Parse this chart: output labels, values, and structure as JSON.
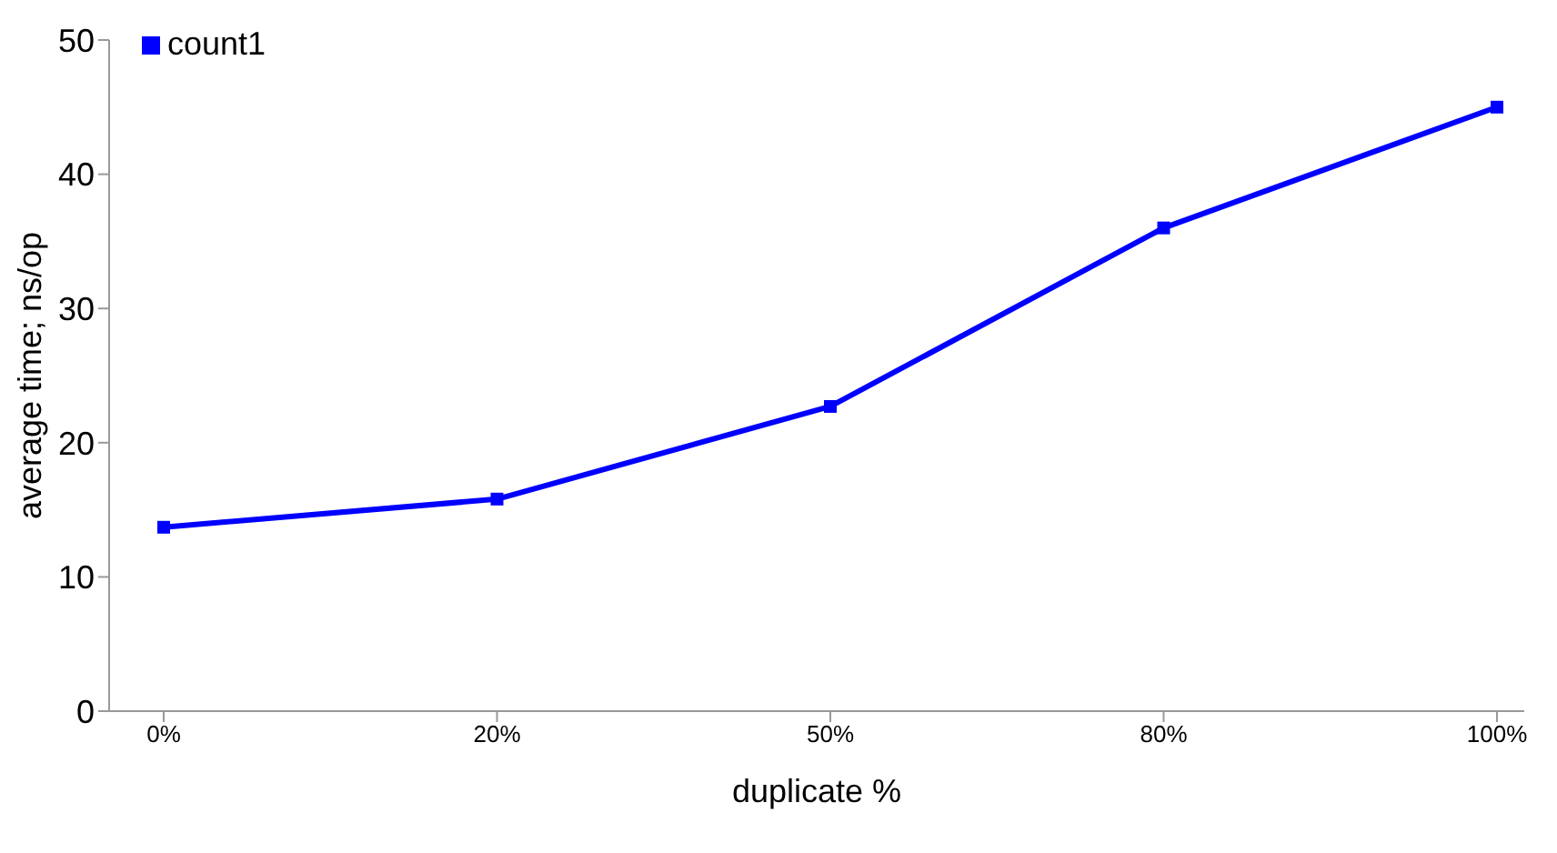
{
  "chart_data": {
    "type": "line",
    "xlabel": "duplicate %",
    "ylabel": "average time; ns/op",
    "categories": [
      "0%",
      "20%",
      "50%",
      "80%",
      "100%"
    ],
    "series": [
      {
        "name": "count1",
        "color": "#0000ff",
        "values": [
          13.7,
          15.8,
          22.7,
          36.0,
          45.0
        ]
      }
    ],
    "ylim": [
      0,
      50
    ],
    "yticks": [
      0,
      10,
      20,
      30,
      40,
      50
    ],
    "grid": false,
    "legend": "top left",
    "marker": "square",
    "line_style": "solid"
  }
}
